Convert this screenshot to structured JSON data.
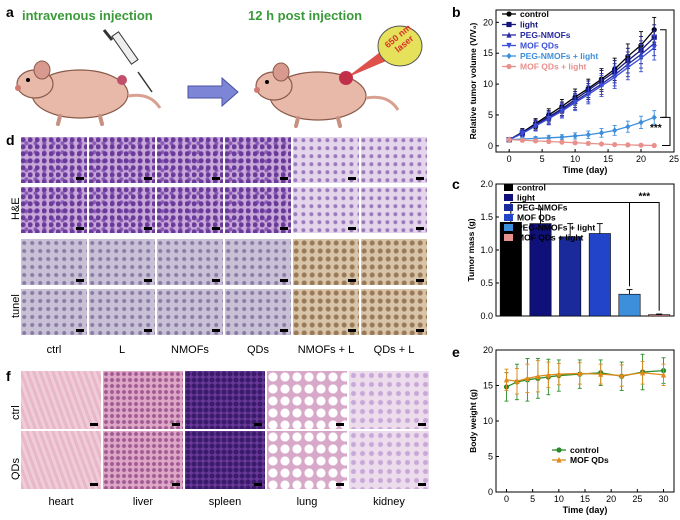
{
  "panel_a": {
    "label": "a",
    "step1": "intravenous injection",
    "step2": "12 h post injection",
    "laser_label": "650 nm laser",
    "colors": {
      "text_green": "#3a9a3a",
      "arrow": "#7d85d6",
      "laser_badge": "#e6e15a",
      "laser_beam": "#d8322c"
    }
  },
  "panel_d": {
    "label": "d",
    "row_labels": [
      "H&E",
      "tunel"
    ],
    "columns": [
      "ctrl",
      "L",
      "NMOFs",
      "QDs",
      "NMOFs + L",
      "QDs + L"
    ]
  },
  "panel_f": {
    "label": "f",
    "row_labels": [
      "ctrl",
      "QDs"
    ],
    "columns": [
      "heart",
      "liver",
      "spleen",
      "lung",
      "kidney"
    ]
  },
  "chart_data": [
    {
      "panel": "b",
      "type": "line",
      "xlabel": "Time (day)",
      "ylabel": "Relative tumor volume (V/V₀)",
      "xlim": [
        -2,
        25
      ],
      "ylim": [
        -1,
        22
      ],
      "xticks": [
        0,
        5,
        10,
        15,
        20,
        25
      ],
      "yticks": [
        0,
        5,
        10,
        15,
        20
      ],
      "significance": "***",
      "legend_position": "top-left",
      "x": [
        0,
        2,
        4,
        6,
        8,
        10,
        12,
        14,
        16,
        18,
        20,
        22
      ],
      "series": [
        {
          "name": "control",
          "color": "#000000",
          "marker": "circle",
          "values": [
            1.0,
            2.2,
            3.6,
            5.0,
            6.4,
            7.9,
            9.3,
            10.8,
            12.4,
            14.5,
            16.3,
            18.8
          ],
          "err": [
            0.3,
            0.6,
            0.8,
            1.0,
            1.1,
            1.3,
            1.5,
            1.7,
            1.8,
            2.0,
            2.2,
            2.0
          ]
        },
        {
          "name": "light",
          "color": "#15157a",
          "marker": "square",
          "values": [
            1.0,
            2.1,
            3.4,
            4.7,
            6.0,
            7.5,
            9.0,
            10.5,
            12.0,
            13.8,
            15.5,
            17.6
          ],
          "err": [
            0.3,
            0.6,
            0.8,
            1.0,
            1.1,
            1.3,
            1.5,
            1.7,
            1.8,
            2.0,
            2.2,
            2.0
          ]
        },
        {
          "name": "PEG-NMOFs",
          "color": "#2a2aa0",
          "marker": "triangle",
          "values": [
            1.0,
            2.0,
            3.3,
            4.5,
            5.8,
            7.2,
            8.6,
            10.0,
            11.5,
            13.2,
            14.8,
            16.6
          ],
          "err": [
            0.3,
            0.6,
            0.8,
            1.0,
            1.1,
            1.3,
            1.5,
            1.7,
            1.8,
            2.0,
            2.2,
            2.0
          ]
        },
        {
          "name": "MOF QDs",
          "color": "#3b4fd6",
          "marker": "triangle-down",
          "values": [
            1.0,
            2.0,
            3.2,
            4.4,
            5.6,
            7.0,
            8.3,
            9.7,
            11.1,
            12.7,
            14.2,
            15.9
          ],
          "err": [
            0.3,
            0.6,
            0.8,
            1.0,
            1.1,
            1.3,
            1.5,
            1.7,
            1.8,
            2.0,
            2.2,
            2.0
          ]
        },
        {
          "name": "PEG-NMOFs + light",
          "color": "#3d8fdc",
          "marker": "diamond",
          "values": [
            1.0,
            1.1,
            1.2,
            1.3,
            1.4,
            1.6,
            1.8,
            2.1,
            2.5,
            3.1,
            3.8,
            4.6
          ],
          "err": [
            0.2,
            0.3,
            0.3,
            0.4,
            0.4,
            0.5,
            0.6,
            0.7,
            0.8,
            0.9,
            1.0,
            1.1
          ]
        },
        {
          "name": "MOF QDs + light",
          "color": "#e8908c",
          "marker": "circle",
          "values": [
            1.0,
            0.9,
            0.8,
            0.7,
            0.6,
            0.5,
            0.4,
            0.3,
            0.2,
            0.15,
            0.1,
            0.05
          ],
          "err": [
            0.1,
            0.1,
            0.1,
            0.1,
            0.1,
            0.1,
            0.1,
            0.1,
            0.1,
            0.1,
            0.1,
            0.1
          ]
        }
      ]
    },
    {
      "panel": "c",
      "type": "bar",
      "xlabel": "",
      "ylabel": "Tumor mass (g)",
      "ylim": [
        0,
        2.0
      ],
      "yticks": [
        0.0,
        0.5,
        1.0,
        1.5,
        2.0
      ],
      "significance": "***",
      "legend_position": "top-left",
      "categories": [
        "control",
        "light",
        "PEG-NMOFs",
        "MOF QDs",
        "PEG-NMOFs + light",
        "MOF QDs + light"
      ],
      "values": [
        1.42,
        1.4,
        1.2,
        1.25,
        0.33,
        0.02
      ],
      "err": [
        0.12,
        0.22,
        0.2,
        0.15,
        0.07,
        0.01
      ],
      "colors": [
        "#000000",
        "#10107a",
        "#1a2a9a",
        "#2244c8",
        "#3d8fdc",
        "#e8908c"
      ]
    },
    {
      "panel": "e",
      "type": "line",
      "xlabel": "Time (day)",
      "ylabel": "Body weight (g)",
      "xlim": [
        -2,
        32
      ],
      "ylim": [
        0,
        20
      ],
      "xticks": [
        0,
        5,
        10,
        15,
        20,
        25,
        30
      ],
      "yticks": [
        0,
        5,
        10,
        15,
        20
      ],
      "legend_position": "bottom-center",
      "x": [
        0,
        2,
        4,
        6,
        8,
        10,
        14,
        18,
        22,
        26,
        30
      ],
      "series": [
        {
          "name": "control",
          "color": "#2a8a2a",
          "marker": "circle",
          "values": [
            14.8,
            15.5,
            15.8,
            16.0,
            16.2,
            16.4,
            16.6,
            16.8,
            16.3,
            16.9,
            17.1
          ],
          "err": [
            2.0,
            2.5,
            3.0,
            2.8,
            2.5,
            2.2,
            2.0,
            1.8,
            2.0,
            2.5,
            1.8
          ]
        },
        {
          "name": "MOF QDs",
          "color": "#e08a1a",
          "marker": "triangle",
          "values": [
            15.8,
            15.6,
            16.0,
            16.3,
            16.5,
            16.6,
            16.7,
            16.6,
            16.4,
            16.8,
            16.5
          ],
          "err": [
            1.5,
            1.8,
            2.0,
            2.2,
            1.8,
            1.5,
            1.5,
            1.4,
            1.5,
            1.6,
            1.5
          ]
        }
      ]
    }
  ]
}
